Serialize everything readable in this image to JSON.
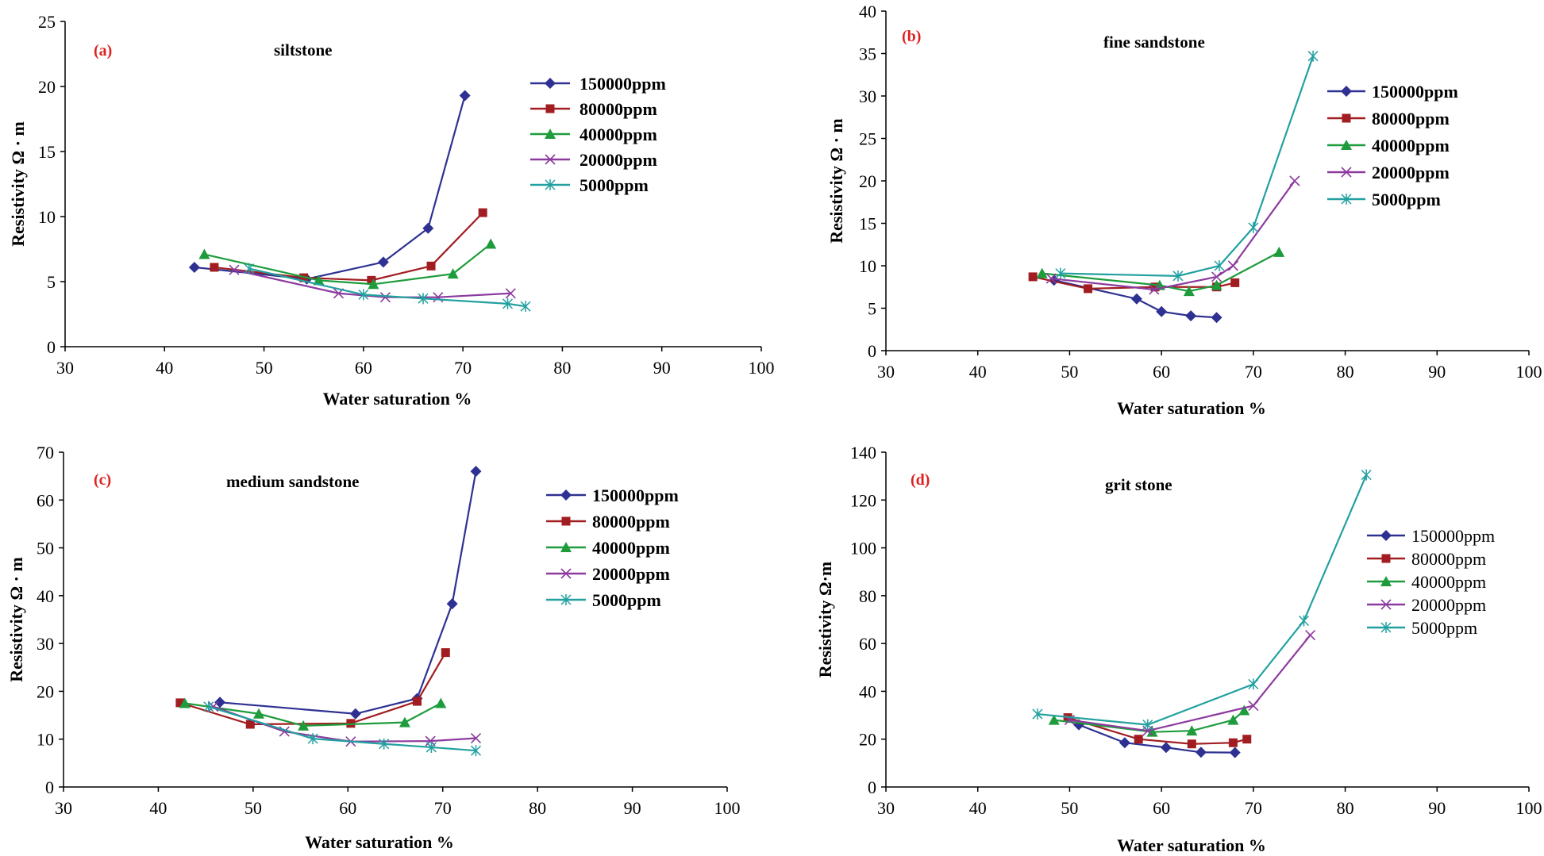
{
  "colors": {
    "150000ppm": "#2e3192",
    "80000ppm": "#a11d21",
    "40000ppm": "#1e9c3c",
    "20000ppm": "#8c3a9e",
    "5000ppm": "#22a0a0",
    "panel_label": "#e02020"
  },
  "chart_data": [
    {
      "type": "line",
      "panel": "(a)",
      "title": "siltstone",
      "xlabel": "Water saturation %",
      "ylabel": "Resistivity Ω · m",
      "xlim": [
        30,
        100
      ],
      "ylim": [
        0,
        25
      ],
      "xticks": [
        "30",
        "40",
        "50",
        "60",
        "70",
        "80",
        "90",
        "100"
      ],
      "yticks": [
        "0",
        "5",
        "10",
        "15",
        "20",
        "25"
      ],
      "series": [
        {
          "name": "150000ppm",
          "marker": "diamond",
          "x": [
            43.0,
            54.3,
            62.0,
            66.5,
            70.2
          ],
          "y": [
            6.1,
            5.2,
            6.5,
            9.1,
            19.3
          ]
        },
        {
          "name": "80000ppm",
          "marker": "square",
          "x": [
            45.0,
            54.0,
            60.8,
            66.8,
            72.0
          ],
          "y": [
            6.1,
            5.3,
            5.1,
            6.2,
            10.3
          ]
        },
        {
          "name": "40000ppm",
          "marker": "triangle",
          "x": [
            44.0,
            55.5,
            61.0,
            69.0,
            72.8
          ],
          "y": [
            7.1,
            5.1,
            4.8,
            5.6,
            7.9
          ]
        },
        {
          "name": "20000ppm",
          "marker": "x",
          "x": [
            47.0,
            57.5,
            62.2,
            67.5,
            74.8
          ],
          "y": [
            5.9,
            4.1,
            3.8,
            3.8,
            4.1
          ]
        },
        {
          "name": "5000ppm",
          "marker": "star",
          "x": [
            48.5,
            60.0,
            66.0,
            74.5,
            76.3
          ],
          "y": [
            6.0,
            4.0,
            3.7,
            3.3,
            3.1
          ]
        }
      ],
      "legend": {
        "labels": [
          "150000ppm",
          "80000ppm",
          "40000ppm",
          "20000ppm",
          "5000ppm"
        ],
        "placement": "top-right",
        "style": "bold"
      }
    },
    {
      "type": "line",
      "panel": "(b)",
      "title": "fine sandstone",
      "xlabel": "Water saturation %",
      "ylabel": "Resistivity Ω · m",
      "xlim": [
        30,
        100
      ],
      "ylim": [
        0,
        40
      ],
      "xticks": [
        "30",
        "40",
        "50",
        "60",
        "70",
        "80",
        "90",
        "100"
      ],
      "yticks": [
        "0",
        "5",
        "10",
        "15",
        "20",
        "25",
        "30",
        "35",
        "40"
      ],
      "series": [
        {
          "name": "150000ppm",
          "marker": "diamond",
          "x": [
            48.3,
            57.3,
            60.0,
            63.2,
            66.0
          ],
          "y": [
            8.3,
            6.1,
            4.6,
            4.1,
            3.9
          ]
        },
        {
          "name": "80000ppm",
          "marker": "square",
          "x": [
            46.0,
            52.0,
            59.3,
            66.0,
            68.0
          ],
          "y": [
            8.7,
            7.3,
            7.5,
            7.5,
            8.0
          ]
        },
        {
          "name": "40000ppm",
          "marker": "triangle",
          "x": [
            47.0,
            59.8,
            63.0,
            66.0,
            72.8
          ],
          "y": [
            9.1,
            7.7,
            7.0,
            7.7,
            11.6
          ]
        },
        {
          "name": "20000ppm",
          "marker": "x",
          "x": [
            48.0,
            59.2,
            66.0,
            67.8,
            74.5
          ],
          "y": [
            8.5,
            7.2,
            8.7,
            10.0,
            20.0
          ]
        },
        {
          "name": "5000ppm",
          "marker": "star",
          "x": [
            49.0,
            61.8,
            66.3,
            70.0,
            76.5
          ],
          "y": [
            9.1,
            8.8,
            10.0,
            14.5,
            34.7
          ]
        }
      ],
      "legend": {
        "labels": [
          "150000ppm",
          "80000ppm",
          "40000ppm",
          "20000ppm",
          "5000ppm"
        ],
        "placement": "middle-left",
        "style": "bold"
      }
    },
    {
      "type": "line",
      "panel": "(c)",
      "title": "medium sandstone",
      "xlabel": "Water saturation %",
      "ylabel": "Resistivity Ω · m",
      "xlim": [
        30,
        100
      ],
      "ylim": [
        0,
        70
      ],
      "xticks": [
        "30",
        "40",
        "50",
        "60",
        "70",
        "80",
        "90",
        "100"
      ],
      "yticks": [
        "0",
        "10",
        "20",
        "30",
        "40",
        "50",
        "60",
        "70"
      ],
      "series": [
        {
          "name": "150000ppm",
          "marker": "diamond",
          "x": [
            46.5,
            60.8,
            67.3,
            71.0,
            73.5
          ],
          "y": [
            17.7,
            15.3,
            18.5,
            38.3,
            66.0
          ]
        },
        {
          "name": "80000ppm",
          "marker": "square",
          "x": [
            42.3,
            49.7,
            60.3,
            67.3,
            70.3
          ],
          "y": [
            17.6,
            13.1,
            13.3,
            17.9,
            28.1
          ]
        },
        {
          "name": "40000ppm",
          "marker": "triangle",
          "x": [
            42.8,
            50.6,
            55.3,
            66.0,
            69.8
          ],
          "y": [
            17.5,
            15.3,
            12.8,
            13.5,
            17.5
          ]
        },
        {
          "name": "20000ppm",
          "marker": "x",
          "x": [
            45.8,
            53.3,
            60.3,
            68.7,
            73.5
          ],
          "y": [
            16.8,
            11.6,
            9.5,
            9.6,
            10.2
          ]
        },
        {
          "name": "5000ppm",
          "marker": "star",
          "x": [
            45.3,
            56.3,
            63.8,
            68.8,
            73.5
          ],
          "y": [
            16.8,
            10.1,
            9.0,
            8.3,
            7.6
          ]
        }
      ],
      "legend": {
        "labels": [
          "150000ppm",
          "80000ppm",
          "40000ppm",
          "20000ppm",
          "5000ppm"
        ],
        "placement": "top-right",
        "style": "bold"
      }
    },
    {
      "type": "line",
      "panel": "(d)",
      "title": "grit stone",
      "xlabel": "Water saturation %",
      "ylabel": "Resistivity Ω·m",
      "xlim": [
        30,
        100
      ],
      "ylim": [
        0,
        140
      ],
      "xticks": [
        "30",
        "40",
        "50",
        "60",
        "70",
        "80",
        "90",
        "100"
      ],
      "yticks": [
        "0",
        "20",
        "40",
        "60",
        "80",
        "100",
        "120",
        "140"
      ],
      "series": [
        {
          "name": "150000ppm",
          "marker": "diamond",
          "x": [
            51.0,
            56.0,
            60.5,
            64.3,
            68.0
          ],
          "y": [
            26.0,
            18.5,
            16.5,
            14.5,
            14.4
          ]
        },
        {
          "name": "80000ppm",
          "marker": "square",
          "x": [
            49.8,
            57.5,
            63.3,
            67.8,
            69.3
          ],
          "y": [
            29.0,
            20.0,
            18.0,
            18.5,
            20.0
          ]
        },
        {
          "name": "40000ppm",
          "marker": "triangle",
          "x": [
            48.3,
            59.0,
            63.3,
            67.8,
            69.0
          ],
          "y": [
            28.0,
            23.0,
            23.5,
            28.0,
            32.0
          ]
        },
        {
          "name": "20000ppm",
          "marker": "x",
          "x": [
            50.0,
            58.5,
            70.0,
            76.2
          ],
          "y": [
            28.0,
            23.5,
            34.0,
            63.5
          ]
        },
        {
          "name": "5000ppm",
          "marker": "star",
          "x": [
            46.5,
            58.5,
            70.0,
            75.5,
            82.3
          ],
          "y": [
            30.5,
            26.0,
            43.0,
            69.5,
            130.5
          ]
        }
      ],
      "legend": {
        "labels": [
          "150000ppm",
          "80000ppm",
          "40000ppm",
          "20000ppm",
          "5000ppm"
        ],
        "placement": "middle-right",
        "style": "plain"
      }
    }
  ]
}
